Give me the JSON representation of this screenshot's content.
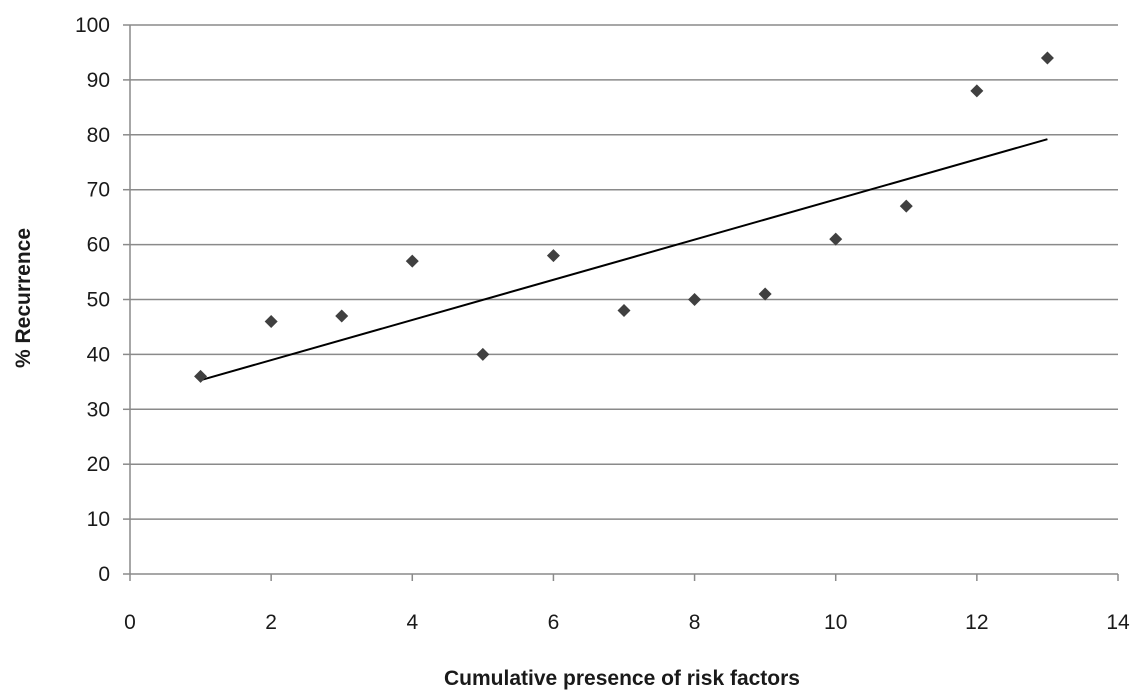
{
  "chart_data": {
    "type": "scatter",
    "title": "",
    "xlabel": "Cumulative presence of risk factors",
    "ylabel": "% Recurrence",
    "xlim": [
      0,
      14
    ],
    "ylim": [
      0,
      100
    ],
    "x_ticks": [
      0,
      2,
      4,
      6,
      8,
      10,
      12,
      14
    ],
    "y_ticks": [
      0,
      10,
      20,
      30,
      40,
      50,
      60,
      70,
      80,
      90,
      100
    ],
    "grid": "horizontal",
    "legend": "none",
    "marker": "diamond",
    "series": [
      {
        "x": [
          1,
          2,
          3,
          4,
          5,
          6,
          7,
          8,
          9,
          10,
          11,
          12,
          13
        ],
        "y": [
          36,
          46,
          47,
          57,
          40,
          58,
          48,
          50,
          51,
          61,
          67,
          88,
          94
        ],
        "color": "#404040"
      }
    ],
    "trendline": {
      "type": "linear",
      "x": [
        1,
        13
      ],
      "y": [
        35.3,
        79.2
      ],
      "color": "#000000"
    }
  }
}
